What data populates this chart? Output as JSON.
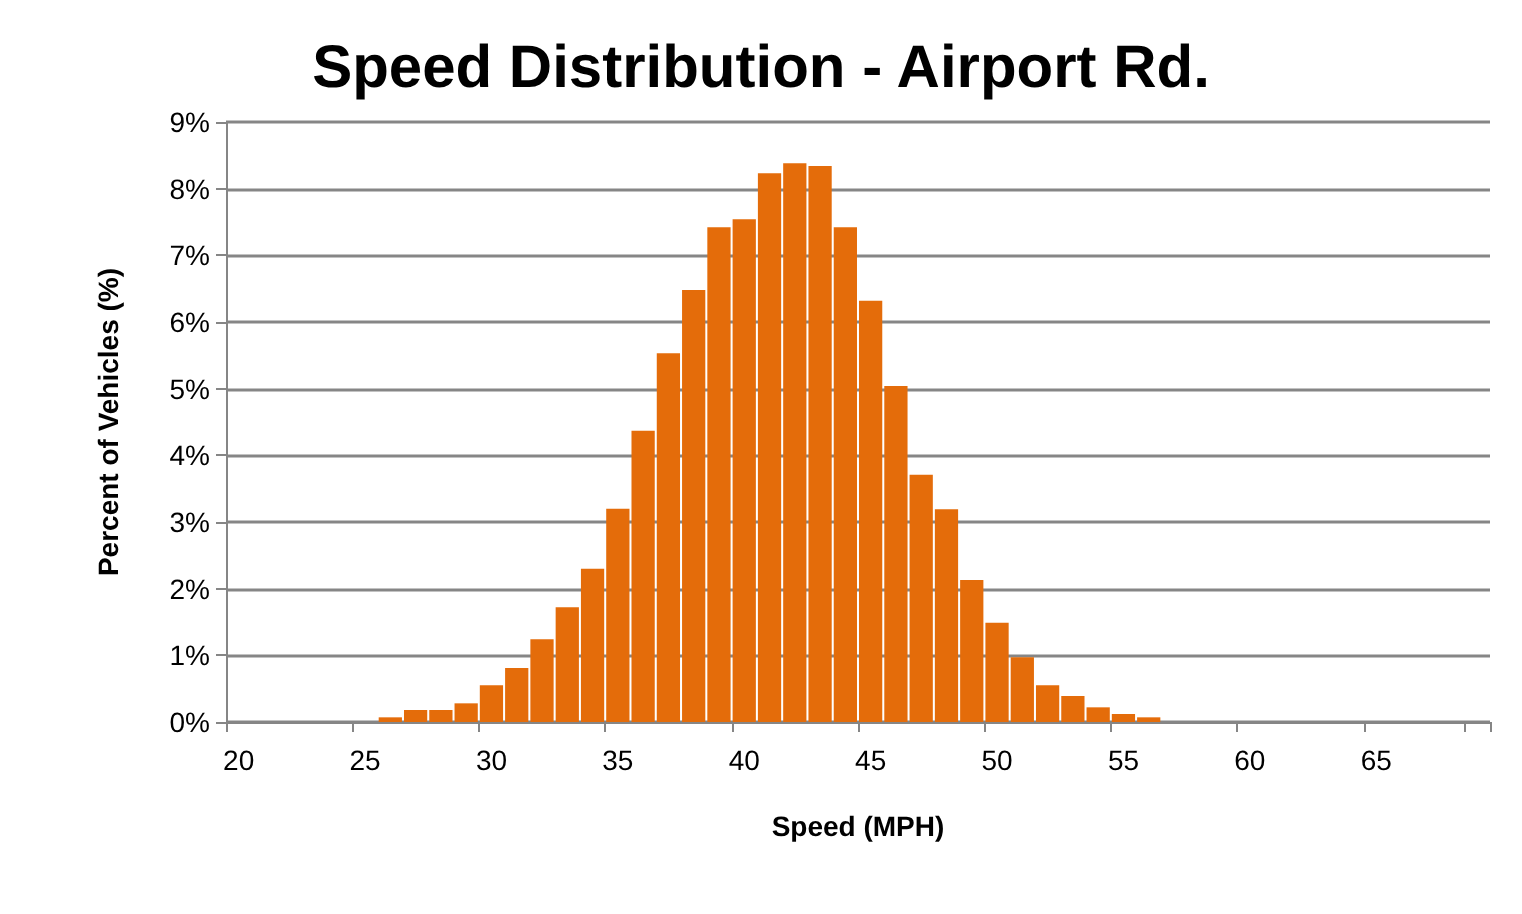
{
  "chart_data": {
    "type": "bar",
    "title": "Speed Distribution - Airport Rd.",
    "xlabel": "Speed (MPH)",
    "ylabel": "Percent of Vehicles (%)",
    "categories": [
      "20",
      null,
      null,
      null,
      null,
      "25",
      null,
      null,
      null,
      null,
      "30",
      null,
      null,
      null,
      null,
      "35",
      null,
      null,
      null,
      null,
      "40",
      null,
      null,
      null,
      null,
      "45",
      null,
      null,
      null,
      null,
      "50",
      null,
      null,
      null,
      null,
      "55",
      null,
      null,
      null,
      null,
      "60",
      null,
      null,
      null,
      null,
      "65",
      null,
      null,
      null,
      null
    ],
    "values": [
      0,
      0,
      0,
      0,
      0,
      0,
      0.07,
      0.18,
      0.18,
      0.28,
      0.55,
      0.81,
      1.24,
      1.72,
      2.3,
      3.2,
      4.37,
      5.53,
      6.48,
      7.42,
      7.54,
      8.23,
      8.38,
      8.34,
      7.42,
      6.32,
      5.04,
      3.71,
      3.19,
      2.13,
      1.49,
      0.97,
      0.55,
      0.39,
      0.22,
      0.12,
      0.07,
      0,
      0,
      0,
      0,
      0,
      0,
      0,
      0,
      0,
      0,
      0,
      0,
      0
    ],
    "color": "#e46c0a",
    "ylim": [
      0,
      9
    ],
    "yticks": [
      {
        "value": 0,
        "label": "0%"
      },
      {
        "value": 1,
        "label": "1%"
      },
      {
        "value": 2,
        "label": "2%"
      },
      {
        "value": 3,
        "label": "3%"
      },
      {
        "value": 4,
        "label": "4%"
      },
      {
        "value": 5,
        "label": "5%"
      },
      {
        "value": 6,
        "label": "6%"
      },
      {
        "value": 7,
        "label": "7%"
      },
      {
        "value": 8,
        "label": "8%"
      },
      {
        "value": 9,
        "label": "9%"
      }
    ],
    "grid": "y"
  }
}
